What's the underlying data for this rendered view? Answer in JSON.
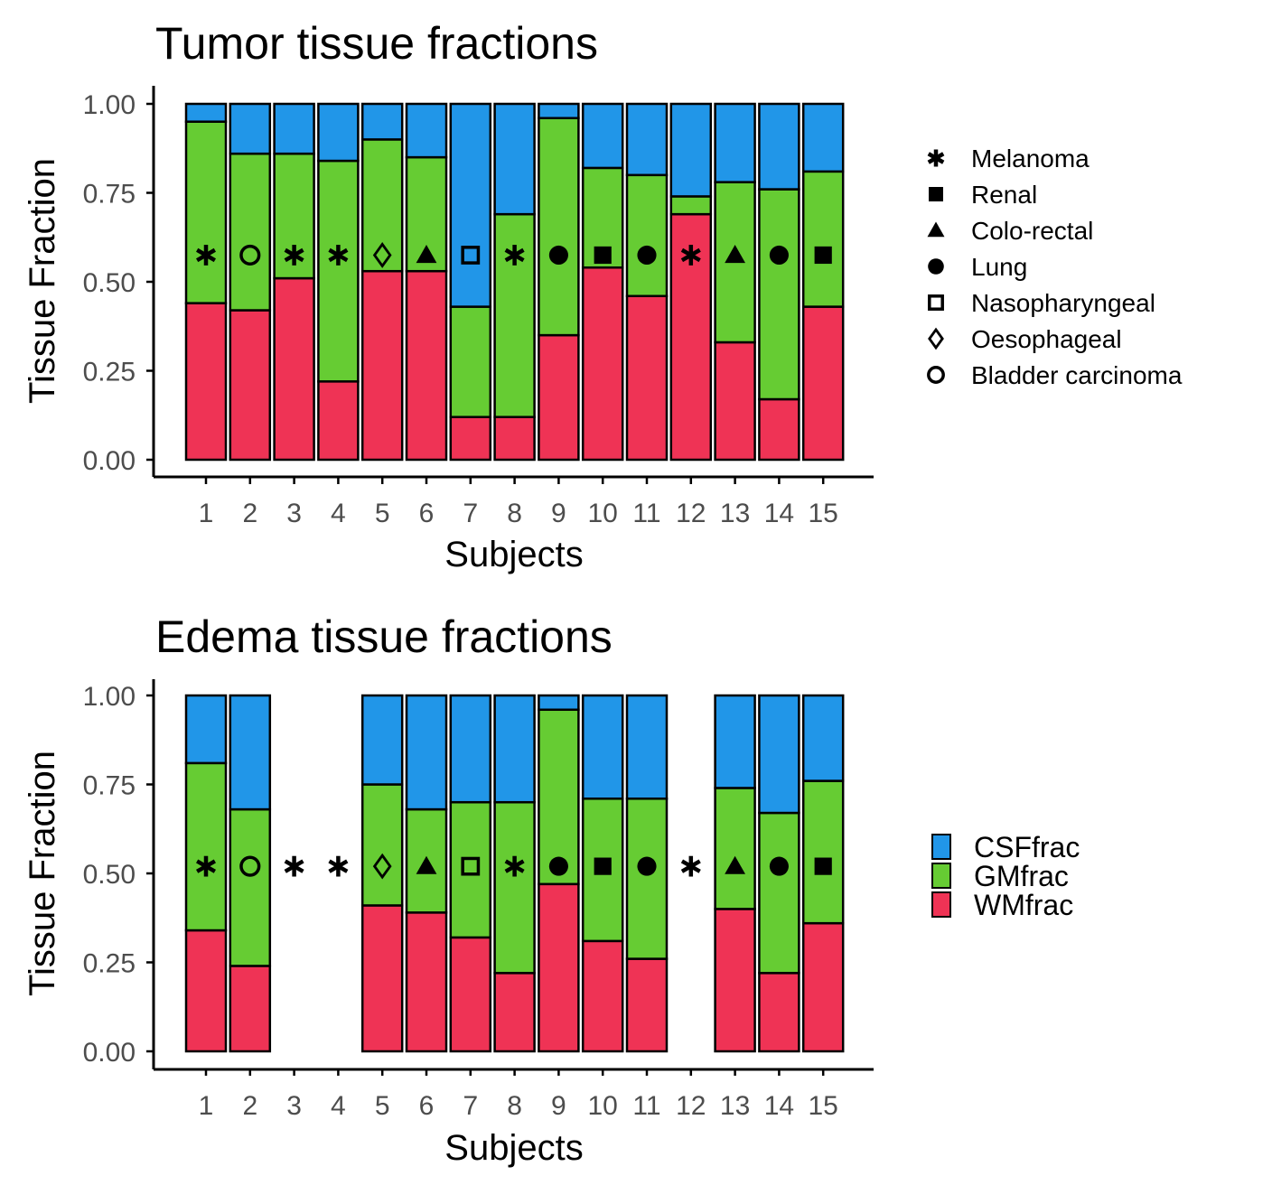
{
  "colors": {
    "CSFfrac": "#2196e8",
    "GMfrac": "#66cc33",
    "WMfrac": "#ef3355",
    "axis": "#000000",
    "tick_text": "#4d4d4d"
  },
  "shape_legend": {
    "entries": [
      {
        "label": "Melanoma",
        "shape": "asterisk"
      },
      {
        "label": "Renal",
        "shape": "filled-square"
      },
      {
        "label": "Colo-rectal",
        "shape": "filled-triangle"
      },
      {
        "label": "Lung",
        "shape": "filled-circle"
      },
      {
        "label": "Nasopharyngeal",
        "shape": "open-square"
      },
      {
        "label": "Oesophageal",
        "shape": "open-diamond"
      },
      {
        "label": "Bladder carcinoma",
        "shape": "open-circle"
      }
    ]
  },
  "fill_legend": {
    "entries": [
      {
        "label": "CSFfrac",
        "key": "CSFfrac"
      },
      {
        "label": "GMfrac",
        "key": "GMfrac"
      },
      {
        "label": "WMfrac",
        "key": "WMfrac"
      }
    ]
  },
  "subject_shapes": [
    "asterisk",
    "open-circle",
    "asterisk",
    "asterisk",
    "open-diamond",
    "filled-triangle",
    "open-square",
    "asterisk",
    "filled-circle",
    "filled-square",
    "filled-circle",
    "asterisk",
    "filled-triangle",
    "filled-circle",
    "filled-square"
  ],
  "chart_data": [
    {
      "type": "bar",
      "stacked": true,
      "title": "Tumor tissue fractions",
      "xlabel": "Subjects",
      "ylabel": "Tissue Fraction",
      "categories": [
        "1",
        "2",
        "3",
        "4",
        "5",
        "6",
        "7",
        "8",
        "9",
        "10",
        "11",
        "12",
        "13",
        "14",
        "15"
      ],
      "ylim": [
        0,
        1
      ],
      "yticks": [
        "0.00",
        "0.25",
        "0.50",
        "0.75",
        "1.00"
      ],
      "marker_y": 0.575,
      "series": [
        {
          "name": "WMfrac",
          "values": [
            0.44,
            0.42,
            0.51,
            0.22,
            0.53,
            0.53,
            0.12,
            0.12,
            0.35,
            0.54,
            0.46,
            0.69,
            0.33,
            0.17,
            0.43
          ]
        },
        {
          "name": "GMfrac",
          "values": [
            0.51,
            0.44,
            0.35,
            0.62,
            0.37,
            0.32,
            0.31,
            0.57,
            0.61,
            0.28,
            0.34,
            0.05,
            0.45,
            0.59,
            0.38
          ]
        },
        {
          "name": "CSFfrac",
          "values": [
            0.05,
            0.14,
            0.14,
            0.16,
            0.1,
            0.15,
            0.57,
            0.31,
            0.04,
            0.18,
            0.2,
            0.26,
            0.22,
            0.24,
            0.19
          ]
        }
      ]
    },
    {
      "type": "bar",
      "stacked": true,
      "title": "Edema tissue fractions",
      "xlabel": "Subjects",
      "ylabel": "Tissue Fraction",
      "categories": [
        "1",
        "2",
        "3",
        "4",
        "5",
        "6",
        "7",
        "8",
        "9",
        "10",
        "11",
        "12",
        "13",
        "14",
        "15"
      ],
      "ylim": [
        0,
        1
      ],
      "yticks": [
        "0.00",
        "0.25",
        "0.50",
        "0.75",
        "1.00"
      ],
      "marker_y": 0.52,
      "series": [
        {
          "name": "WMfrac",
          "values": [
            0.34,
            0.24,
            null,
            null,
            0.41,
            0.39,
            0.32,
            0.22,
            0.47,
            0.31,
            0.26,
            null,
            0.4,
            0.22,
            0.36
          ]
        },
        {
          "name": "GMfrac",
          "values": [
            0.47,
            0.44,
            null,
            null,
            0.34,
            0.29,
            0.38,
            0.48,
            0.49,
            0.4,
            0.45,
            null,
            0.34,
            0.45,
            0.4
          ]
        },
        {
          "name": "CSFfrac",
          "values": [
            0.19,
            0.32,
            null,
            null,
            0.25,
            0.32,
            0.3,
            0.3,
            0.04,
            0.29,
            0.29,
            null,
            0.26,
            0.33,
            0.24
          ]
        }
      ]
    }
  ]
}
